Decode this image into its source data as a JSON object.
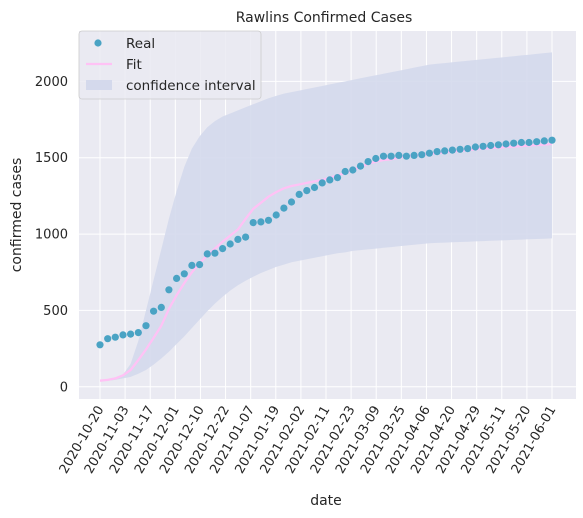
{
  "chart_data": {
    "type": "scatter",
    "title": "Rawlins Confirmed Cases",
    "xlabel": "date",
    "ylabel": "confirmed cases",
    "x_ticks": [
      "2020-10-20",
      "2020-11-03",
      "2020-11-17",
      "2020-12-01",
      "2020-12-10",
      "2020-12-22",
      "2021-01-07",
      "2021-01-19",
      "2021-02-02",
      "2021-02-11",
      "2021-02-23",
      "2021-03-09",
      "2021-03-25",
      "2021-04-06",
      "2021-04-20",
      "2021-04-29",
      "2021-05-11",
      "2021-05-20",
      "2021-06-01"
    ],
    "y_ticks": [
      0,
      500,
      1000,
      1500,
      2000
    ],
    "ylim": [
      -80,
      2330
    ],
    "grid": true,
    "legend_position": "top-left",
    "legend": [
      "Real",
      "Fit",
      "confidence interval"
    ],
    "colors": {
      "background": "#eaeaf2",
      "grid": "#ffffff",
      "real": "#4aa3c4",
      "fit": "#ffc2f5",
      "confidence": "#d4d9ec"
    },
    "series": [
      {
        "name": "Real",
        "style": "points",
        "values": [
          275,
          315,
          325,
          340,
          345,
          355,
          400,
          495,
          520,
          635,
          710,
          740,
          795,
          800,
          870,
          875,
          905,
          935,
          965,
          980,
          1075,
          1080,
          1090,
          1125,
          1170,
          1210,
          1260,
          1285,
          1305,
          1335,
          1355,
          1370,
          1410,
          1420,
          1445,
          1475,
          1495,
          1510,
          1510,
          1515,
          1510,
          1515,
          1520,
          1530,
          1540,
          1545,
          1550,
          1555,
          1560,
          1570,
          1575,
          1580,
          1585,
          1590,
          1595,
          1600,
          1600,
          1605,
          1610,
          1615
        ]
      },
      {
        "name": "Fit",
        "style": "line",
        "values": [
          40,
          45,
          55,
          75,
          110,
          175,
          245,
          320,
          400,
          510,
          600,
          680,
          750,
          810,
          860,
          905,
          950,
          990,
          1030,
          1100,
          1165,
          1205,
          1245,
          1275,
          1300,
          1315,
          1325,
          1335,
          1345,
          1355,
          1370,
          1385,
          1400,
          1420,
          1440,
          1460,
          1475,
          1485,
          1490,
          1500,
          1510,
          1515,
          1520,
          1525,
          1530,
          1535,
          1540,
          1545,
          1550,
          1555,
          1560,
          1563,
          1566,
          1570,
          1573,
          1576,
          1580,
          1583,
          1586,
          1590
        ]
      },
      {
        "name": "confidence interval",
        "style": "band",
        "upper": [
          40,
          45,
          55,
          80,
          150,
          300,
          500,
          700,
          900,
          1100,
          1280,
          1440,
          1560,
          1640,
          1700,
          1740,
          1770,
          1790,
          1810,
          1830,
          1850,
          1870,
          1890,
          1905,
          1920,
          1930,
          1940,
          1950,
          1960,
          1970,
          1980,
          1990,
          2000,
          2010,
          2020,
          2030,
          2040,
          2050,
          2060,
          2070,
          2080,
          2090,
          2100,
          2110,
          2115,
          2120,
          2125,
          2130,
          2135,
          2140,
          2145,
          2150,
          2155,
          2160,
          2165,
          2170,
          2175,
          2180,
          2185,
          2190
        ],
        "lower": [
          40,
          40,
          45,
          55,
          65,
          85,
          110,
          145,
          185,
          230,
          280,
          330,
          385,
          440,
          495,
          545,
          590,
          630,
          665,
          695,
          720,
          745,
          765,
          785,
          800,
          815,
          825,
          835,
          845,
          855,
          865,
          875,
          880,
          890,
          895,
          900,
          905,
          910,
          915,
          920,
          925,
          930,
          935,
          940,
          942,
          944,
          946,
          948,
          950,
          952,
          954,
          956,
          958,
          960,
          962,
          964,
          966,
          968,
          970,
          972
        ]
      }
    ]
  }
}
